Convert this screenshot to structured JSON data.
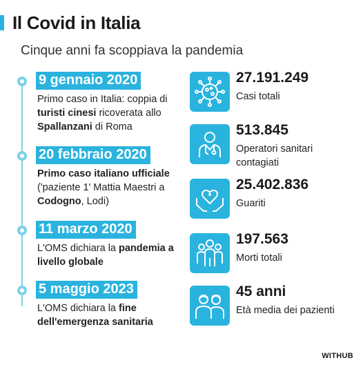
{
  "title": "Il Covid in Italia",
  "subtitle": "Cinque anni fa scoppiava la pandemia",
  "colors": {
    "accent": "#2ab3de",
    "dot": "#7fd0e8"
  },
  "timeline": [
    {
      "date": "9 gennaio 2020",
      "parts": [
        {
          "t": "Primo caso in Italia: coppia di ",
          "b": false
        },
        {
          "t": "turisti cinesi",
          "b": true
        },
        {
          "t": " ricoverata allo ",
          "b": false
        },
        {
          "t": "Spallanzani",
          "b": true
        },
        {
          "t": " di Roma",
          "b": false
        }
      ]
    },
    {
      "date": "20 febbraio 2020",
      "parts": [
        {
          "t": "Primo caso italiano ufficiale",
          "b": true
        },
        {
          "t": " ('paziente 1' Mattia Maestri a ",
          "b": false
        },
        {
          "t": "Codogno",
          "b": true
        },
        {
          "t": ", Lodi)",
          "b": false
        }
      ]
    },
    {
      "date": "11 marzo 2020",
      "parts": [
        {
          "t": "L'OMS dichiara la ",
          "b": false
        },
        {
          "t": "pandemia a livello globale",
          "b": true
        }
      ]
    },
    {
      "date": "5 maggio 2023",
      "parts": [
        {
          "t": "L'OMS dichiara la ",
          "b": false
        },
        {
          "t": "fine dell'emergenza sanitaria",
          "b": true
        }
      ]
    }
  ],
  "stats": [
    {
      "value": "27.191.249",
      "label": "Casi totali",
      "icon": "virus-icon"
    },
    {
      "value": "513.845",
      "label": "Operatori sanitari contagiati",
      "icon": "doctor-icon"
    },
    {
      "value": "25.402.836",
      "label": "Guariti",
      "icon": "heart-hands-icon"
    },
    {
      "value": "197.563",
      "label": "Morti totali",
      "icon": "people-icon"
    },
    {
      "value": "45 anni",
      "label": "Età media dei pazienti",
      "icon": "couple-icon"
    }
  ],
  "brand": "WITHUB"
}
